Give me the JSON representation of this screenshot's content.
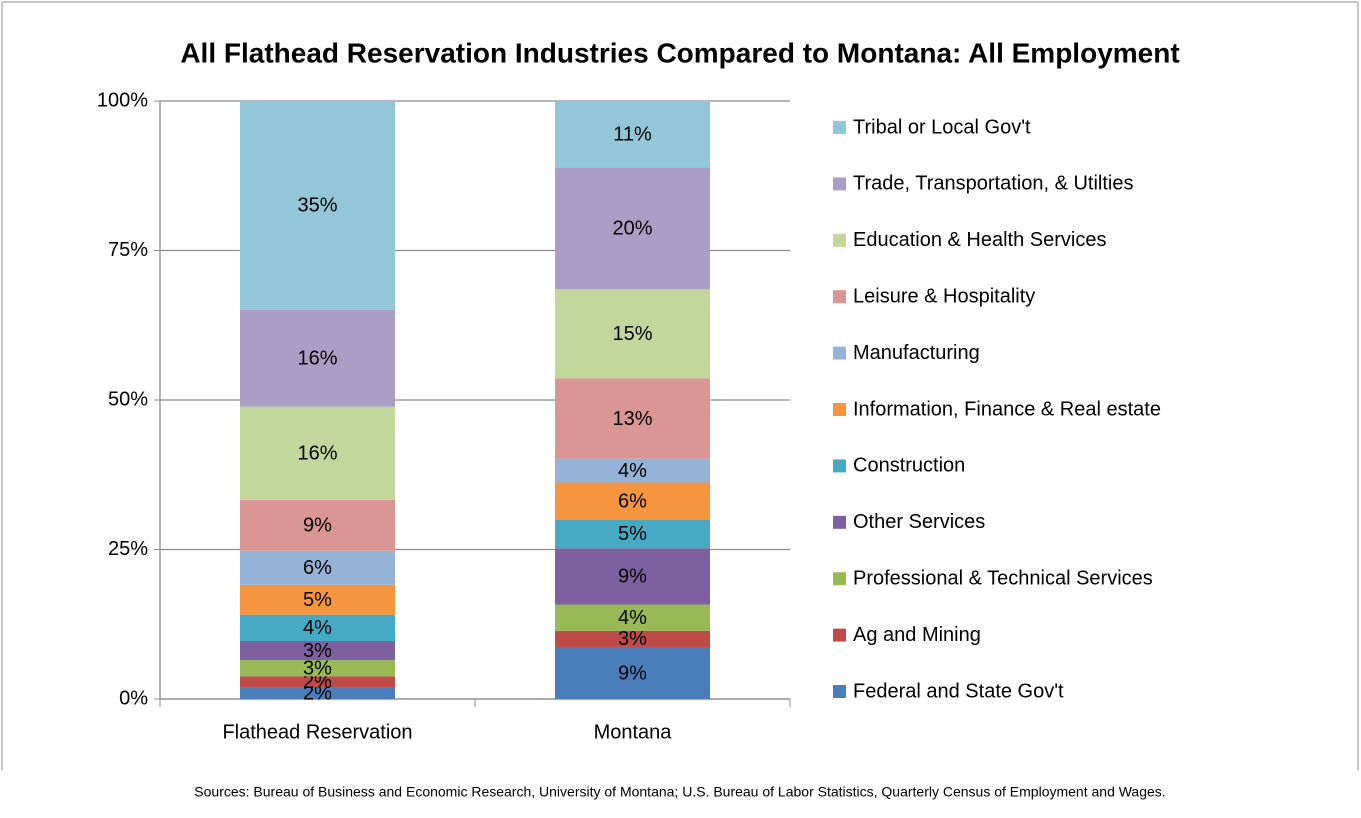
{
  "chart_data": {
    "type": "stacked_bar_100",
    "title": "All Flathead Reservation Industries Compared to Montana: All Employment",
    "categories": [
      "Flathead Reservation",
      "Montana"
    ],
    "series": [
      {
        "name": "Federal and State Gov't",
        "color": "#4a7ebb",
        "values": [
          2.0,
          8.7
        ],
        "value_labels": [
          "2%",
          "9%"
        ]
      },
      {
        "name": "Ag and Mining",
        "color": "#be4b48",
        "values": [
          1.8,
          2.7
        ],
        "value_labels": [
          "2%",
          "3%"
        ]
      },
      {
        "name": "Professional & Technical Services",
        "color": "#98b954",
        "values": [
          2.7,
          4.4
        ],
        "value_labels": [
          "3%",
          "4%"
        ]
      },
      {
        "name": "Other Services",
        "color": "#7d60a0",
        "values": [
          3.2,
          9.4
        ],
        "value_labels": [
          "3%",
          "9%"
        ]
      },
      {
        "name": "Construction",
        "color": "#46aac5",
        "values": [
          4.4,
          4.8
        ],
        "value_labels": [
          "4%",
          "5%"
        ]
      },
      {
        "name": "Information, Finance & Real estate",
        "color": "#f59540",
        "values": [
          5.0,
          6.2
        ],
        "value_labels": [
          "5%",
          "6%"
        ]
      },
      {
        "name": "Manufacturing",
        "color": "#95b3d7",
        "values": [
          5.7,
          4.0
        ],
        "value_labels": [
          "6%",
          "4%"
        ]
      },
      {
        "name": "Leisure & Hospitality",
        "color": "#d99694",
        "values": [
          8.5,
          13.4
        ],
        "value_labels": [
          "9%",
          "13%"
        ]
      },
      {
        "name": "Education & Health Services",
        "color": "#c3d69b",
        "values": [
          15.6,
          14.9
        ],
        "value_labels": [
          "16%",
          "15%"
        ]
      },
      {
        "name": "Trade, Transportation, & Utilties",
        "color": "#ab9ec6",
        "values": [
          16.2,
          20.4
        ],
        "value_labels": [
          "16%",
          "20%"
        ]
      },
      {
        "name": "Tribal or Local Gov't",
        "color": "#93c6d8",
        "values": [
          34.9,
          11.1
        ],
        "value_labels": [
          "35%",
          "11%"
        ]
      }
    ],
    "ylim": [
      0,
      100
    ],
    "yticks": [
      {
        "value": 0,
        "label": "0%"
      },
      {
        "value": 25,
        "label": "25%"
      },
      {
        "value": 50,
        "label": "50%"
      },
      {
        "value": 75,
        "label": "75%"
      },
      {
        "value": 100,
        "label": "100%"
      }
    ],
    "grid": true,
    "legend": "right",
    "source": "Sources: Bureau of Business and Economic Research, University of Montana; U.S. Bureau of Labor Statistics, Quarterly Census of Employment and Wages."
  }
}
